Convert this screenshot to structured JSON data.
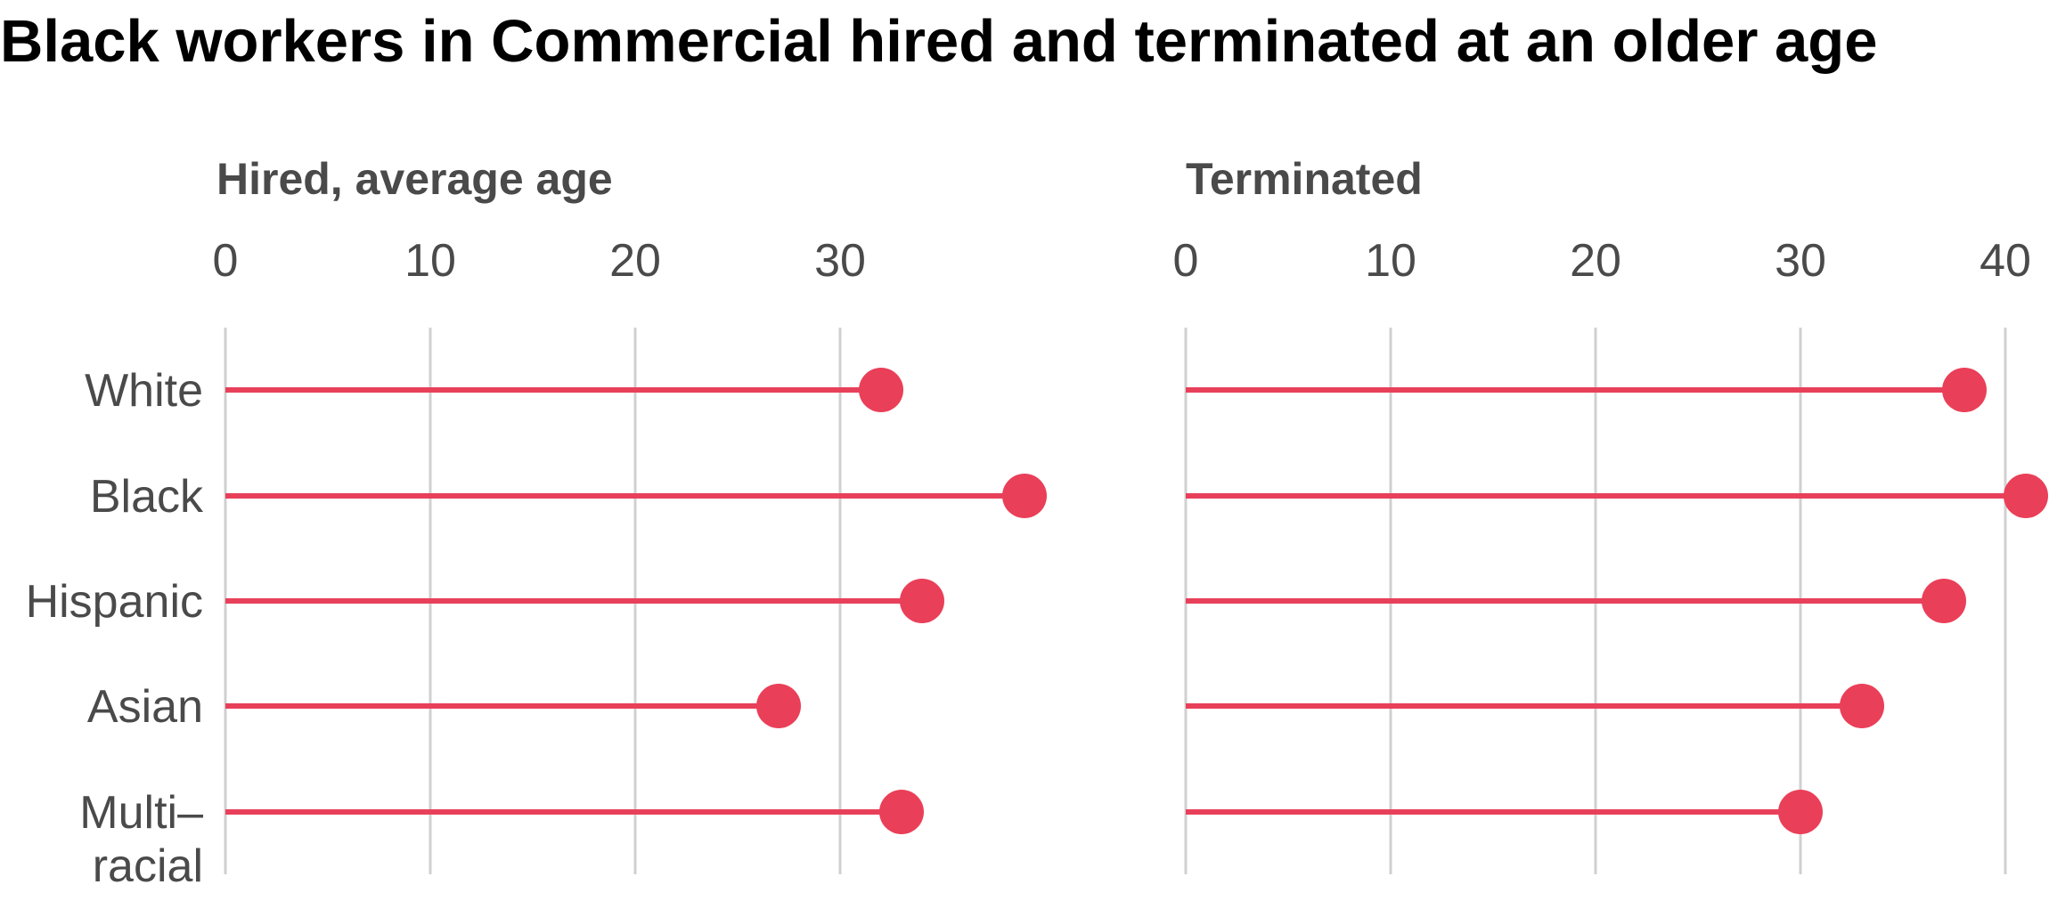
{
  "title": "Black workers in Commercial hired and terminated at an older age",
  "chart_data": {
    "type": "lollipop",
    "categories": [
      "White",
      "Black",
      "Hispanic",
      "Asian",
      "Multi–racial"
    ],
    "category_lines": [
      [
        "White"
      ],
      [
        "Black"
      ],
      [
        "Hispanic"
      ],
      [
        "Asian"
      ],
      [
        "Multi–",
        "racial"
      ]
    ],
    "panels": [
      {
        "title": "Hired, average age",
        "ticks": [
          0,
          10,
          20,
          30
        ],
        "values": [
          32,
          39,
          34,
          27,
          33
        ]
      },
      {
        "title": "Terminated",
        "ticks": [
          0,
          10,
          20,
          30,
          40
        ],
        "values": [
          38,
          41,
          37,
          33,
          30
        ]
      }
    ],
    "colors": {
      "marker": "#ea3f58",
      "grid": "#d0d0d0",
      "text": "#4a4a4a"
    },
    "grid": true
  }
}
